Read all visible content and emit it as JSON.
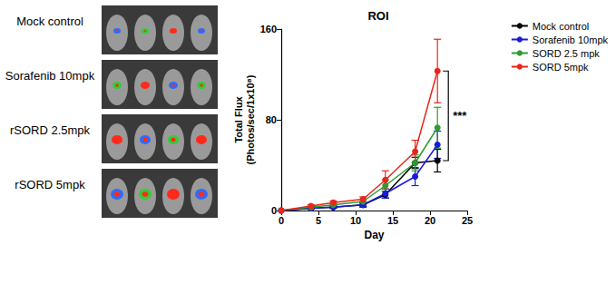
{
  "panel_labels": [
    "Mock control",
    "Sorafenib 10mpk",
    "rSORD 2.5mpk",
    "rSORD 5mpk"
  ],
  "chart_data": {
    "type": "line",
    "title": "ROI",
    "x_label": "Day",
    "y_label": "Total Flux\n(Photos/sec/1x10⁸)",
    "x": [
      0,
      4,
      7,
      11,
      14,
      18,
      21
    ],
    "series": [
      {
        "name": "Mock control",
        "color": "#000000",
        "values": [
          0,
          2,
          3,
          5,
          14,
          42,
          44
        ],
        "errors": [
          0,
          0.5,
          1,
          2,
          3,
          5,
          10
        ]
      },
      {
        "name": "Sorafenib 10mpk",
        "color": "#1a1adb",
        "values": [
          0,
          2,
          3,
          5,
          15,
          30,
          58
        ],
        "errors": [
          0,
          0.5,
          1,
          1.5,
          4,
          8,
          12
        ]
      },
      {
        "name": "SORD 2.5 mpk",
        "color": "#2e9b2e",
        "values": [
          0,
          3,
          5,
          8,
          22,
          42,
          73
        ],
        "errors": [
          0,
          0.5,
          1,
          2,
          5,
          7,
          18
        ]
      },
      {
        "name": "SORD 5mpk",
        "color": "#e8261c",
        "values": [
          0,
          4,
          7,
          10,
          27,
          52,
          123
        ],
        "errors": [
          0,
          1,
          1.5,
          2,
          8,
          10,
          28
        ]
      }
    ],
    "marker": "circle",
    "xlim": [
      0,
      25
    ],
    "xticks": [
      0,
      5,
      10,
      15,
      20,
      25
    ],
    "ylim": [
      0,
      160
    ],
    "yticks": [
      0,
      80,
      160
    ],
    "grid": false,
    "legend": "right",
    "annotations": [
      {
        "text": "***",
        "from": "Mock control",
        "to": "SORD 5mpk"
      }
    ]
  }
}
